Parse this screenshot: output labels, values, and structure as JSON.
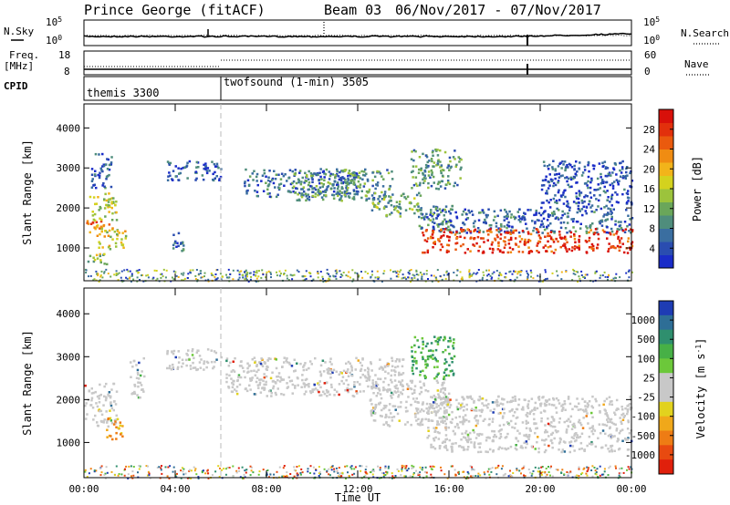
{
  "header": {
    "radar": "Prince George (fitACF)",
    "beam": "Beam 03",
    "dates": "06/Nov/2017 - 07/Nov/2017"
  },
  "status": {
    "nsky_label": "N.Sky",
    "nsky_top": "10^5",
    "nsky_bottom": "10^0",
    "nsearch_top": "10^5",
    "nsearch_bottom": "10^0",
    "nsearch_label": "N.Search",
    "freq_label": "Freq.",
    "freq_unit": "[MHz]",
    "freq_top": "18",
    "freq_bottom": "8",
    "nave_top": "60",
    "nave_bottom": "0",
    "nave_label": "Nave",
    "cpid_label": "CPID",
    "mode1": "themis 3300",
    "mode2": "twofsound (1-min) 3505"
  },
  "chart_data": [
    {
      "type": "heatmap",
      "name": "Power",
      "ylabel": "Slant Range [km]",
      "xlabel": "",
      "x_ticks": [
        "00:00",
        "04:00",
        "08:00",
        "12:00",
        "16:00",
        "20:00",
        "00:00"
      ],
      "x_hours": [
        0,
        4,
        8,
        12,
        16,
        20,
        24
      ],
      "xlim_hours": [
        0,
        24
      ],
      "ylim_km": [
        180,
        4600
      ],
      "y_ticks": [
        1000,
        2000,
        3000,
        4000
      ],
      "colorbar": {
        "label": "Power [dB]",
        "ticks": [
          "4",
          "8",
          "12",
          "16",
          "20",
          "24",
          "28"
        ],
        "colors": [
          "#1a2cc8",
          "#2a4db0",
          "#3a6ea0",
          "#4f8d7c",
          "#6aa65a",
          "#9cc33c",
          "#d4d21e",
          "#f2b41a",
          "#f08c12",
          "#ea5a0e",
          "#e2300c",
          "#d8100a"
        ]
      },
      "bands": [
        {
          "h0": 0.1,
          "h1": 1.1,
          "r0": 1400,
          "r1": 1700,
          "level": 0.8
        },
        {
          "h0": 0.2,
          "h1": 1.4,
          "r0": 1700,
          "r1": 2400,
          "level": 0.5
        },
        {
          "h0": 0.1,
          "h1": 1.0,
          "r0": 600,
          "r1": 900,
          "level": 0.45
        },
        {
          "h0": 0.5,
          "h1": 1.8,
          "r0": 1000,
          "r1": 1600,
          "level": 0.55
        },
        {
          "h0": 0.3,
          "h1": 1.2,
          "r0": 2500,
          "r1": 3400,
          "level": 0.15
        },
        {
          "h0": 3.6,
          "h1": 6.0,
          "r0": 2700,
          "r1": 3200,
          "level": 0.1
        },
        {
          "h0": 3.8,
          "h1": 4.4,
          "r0": 900,
          "r1": 1400,
          "level": 0.15
        },
        {
          "h0": 7.0,
          "h1": 12.0,
          "r0": 2300,
          "r1": 3000,
          "level": 0.15
        },
        {
          "h0": 9.0,
          "h1": 13.5,
          "r0": 2200,
          "r1": 3000,
          "level": 0.3
        },
        {
          "h0": 12.5,
          "h1": 14.8,
          "r0": 1800,
          "r1": 2400,
          "level": 0.35
        },
        {
          "h0": 14.6,
          "h1": 16.2,
          "r0": 1500,
          "r1": 2100,
          "level": 0.25
        },
        {
          "h0": 15.0,
          "h1": 24.0,
          "r0": 1400,
          "r1": 2000,
          "level": 0.15
        },
        {
          "h0": 14.8,
          "h1": 24.0,
          "r0": 900,
          "r1": 1500,
          "level": 0.9
        },
        {
          "h0": 14.3,
          "h1": 16.5,
          "r0": 2500,
          "r1": 3500,
          "level": 0.3
        },
        {
          "h0": 20.0,
          "h1": 24.0,
          "r0": 2000,
          "r1": 3200,
          "level": 0.08
        }
      ]
    },
    {
      "type": "heatmap",
      "name": "Velocity",
      "ylabel": "Slant Range [km]",
      "xlabel": "Time UT",
      "x_ticks": [
        "00:00",
        "04:00",
        "08:00",
        "12:00",
        "16:00",
        "20:00",
        "00:00"
      ],
      "x_hours": [
        0,
        4,
        8,
        12,
        16,
        20,
        24
      ],
      "xlim_hours": [
        0,
        24
      ],
      "ylim_km": [
        180,
        4600
      ],
      "y_ticks": [
        1000,
        2000,
        3000,
        4000
      ],
      "colorbar": {
        "label": "Velocity [m s^-1]",
        "ticks": [
          "1000",
          "500",
          "100",
          "25",
          "-25",
          "-100",
          "-500",
          "-1000"
        ],
        "colors": [
          "#1e3cb4",
          "#2e6e96",
          "#2f8f6e",
          "#47b046",
          "#6cc83a",
          "#c8c8c8",
          "#c8c8c8",
          "#e2d21e",
          "#f0a81a",
          "#ee7c14",
          "#e84a10",
          "#e0200c"
        ]
      },
      "bands": [
        {
          "h0": 0.0,
          "h1": 1.4,
          "r0": 1400,
          "r1": 2400,
          "level": 0.5
        },
        {
          "h0": 0.9,
          "h1": 1.7,
          "r0": 1100,
          "r1": 1600,
          "level": 0.8
        },
        {
          "h0": 2.0,
          "h1": 2.6,
          "r0": 2000,
          "r1": 3000,
          "level": 0.5
        },
        {
          "h0": 3.6,
          "h1": 6.0,
          "r0": 2700,
          "r1": 3200,
          "level": 0.5
        },
        {
          "h0": 6.2,
          "h1": 14.0,
          "r0": 2100,
          "r1": 3000,
          "level": 0.5
        },
        {
          "h0": 12.5,
          "h1": 16.0,
          "r0": 1400,
          "r1": 2500,
          "level": 0.5
        },
        {
          "h0": 15.0,
          "h1": 24.0,
          "r0": 800,
          "r1": 2100,
          "level": 0.5
        },
        {
          "h0": 14.3,
          "h1": 16.2,
          "r0": 2500,
          "r1": 3500,
          "level": 0.15
        }
      ]
    }
  ]
}
